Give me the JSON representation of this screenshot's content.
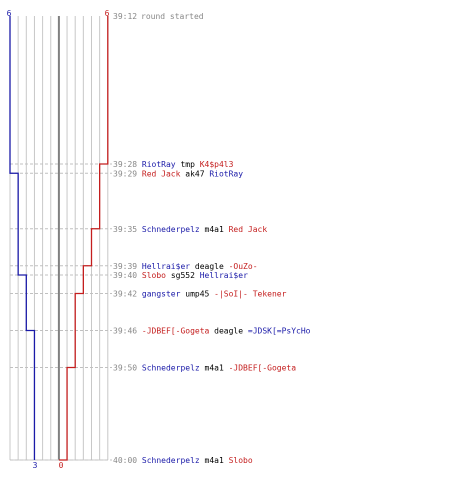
{
  "chart": {
    "teams": {
      "blue": {
        "start": "6",
        "end": "3",
        "color": "#1a1aa8"
      },
      "red": {
        "start": "6",
        "end": "0",
        "color": "#c41e1e"
      }
    },
    "start_event": {
      "time": "39:12",
      "text": "round started"
    }
  },
  "colors": {
    "grid": "#c8c8c8",
    "center": "#808080",
    "dash": "#c0c0c0",
    "time": "#888888"
  },
  "events": [
    {
      "time": "39:28",
      "killer": "RiotRay",
      "killer_team": "blue",
      "weapon": "tmp",
      "victim": "K4$p4l3",
      "victim_team": "red"
    },
    {
      "time": "39:29",
      "killer": "Red Jack",
      "killer_team": "red",
      "weapon": "ak47",
      "victim": "RiotRay",
      "victim_team": "blue"
    },
    {
      "time": "39:35",
      "killer": "Schnederpelz",
      "killer_team": "blue",
      "weapon": "m4a1",
      "victim": "Red Jack",
      "victim_team": "red"
    },
    {
      "time": "39:39",
      "killer": "Hellrai$er",
      "killer_team": "blue",
      "weapon": "deagle",
      "victim": "-OuZo-",
      "victim_team": "red"
    },
    {
      "time": "39:40",
      "killer": "Slobo",
      "killer_team": "red",
      "weapon": "sg552",
      "victim": "Hellrai$er",
      "victim_team": "blue"
    },
    {
      "time": "39:42",
      "killer": "gangster",
      "killer_team": "blue",
      "weapon": "ump45",
      "victim": "-|SoI|- Tekener",
      "victim_team": "red"
    },
    {
      "time": "39:46",
      "killer": "-JDBEF[-Gogeta",
      "killer_team": "red",
      "weapon": "deagle",
      "victim": "=JDSK[=PsYcHo",
      "victim_team": "blue"
    },
    {
      "time": "39:50",
      "killer": "Schnederpelz",
      "killer_team": "blue",
      "weapon": "m4a1",
      "victim": "-JDBEF[-Gogeta",
      "victim_team": "red"
    },
    {
      "time": "40:00",
      "killer": "Schnederpelz",
      "killer_team": "blue",
      "weapon": "m4a1",
      "victim": "Slobo",
      "victim_team": "red"
    }
  ]
}
